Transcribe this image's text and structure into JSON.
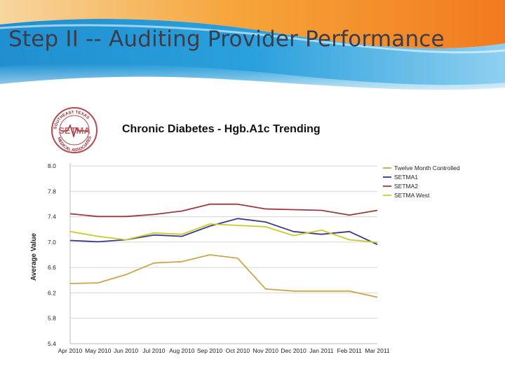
{
  "slide": {
    "title": "Step II -- Auditing Provider Performance"
  },
  "logo": {
    "text": "SETMA",
    "ring_text": "SOUTHEAST TEXAS MEDICAL ASSOCIATES"
  },
  "colors": {
    "series": [
      "#c8a74b",
      "#3a3a8c",
      "#9b3a3a",
      "#c8cc2a"
    ]
  },
  "chart_data": {
    "type": "line",
    "title": "Chronic Diabetes - Hgb.A1c Trending",
    "xlabel": "",
    "ylabel": "Average Value",
    "categories": [
      "Apr 2010",
      "May 2010",
      "Jun 2010",
      "Jul 2010",
      "Aug 2010",
      "Sep 2010",
      "Oct 2010",
      "Nov 2010",
      "Dec 2010",
      "Jan 2011",
      "Feb 2011",
      "Mar 2011"
    ],
    "y_tick_labels": [
      "8.0",
      "7.8",
      "7.4",
      "7.0",
      "6.6",
      "6.2",
      "5.8",
      "5.4"
    ],
    "ylim": [
      5.4,
      8.0
    ],
    "grid": true,
    "legend_position": "top-right",
    "series": [
      {
        "name": "Twelve Month Controlled",
        "values": [
          6.28,
          6.29,
          6.41,
          6.58,
          6.6,
          6.7,
          6.65,
          6.2,
          6.17,
          6.17,
          6.17,
          6.08
        ]
      },
      {
        "name": "SETMA1",
        "values": [
          6.91,
          6.89,
          6.92,
          6.99,
          6.97,
          7.12,
          7.23,
          7.18,
          7.04,
          7.0,
          7.04,
          6.85
        ]
      },
      {
        "name": "SETMA2",
        "values": [
          7.3,
          7.26,
          7.26,
          7.29,
          7.34,
          7.44,
          7.44,
          7.37,
          7.36,
          7.35,
          7.28,
          7.35
        ]
      },
      {
        "name": "SETMA West",
        "values": [
          7.04,
          6.97,
          6.92,
          7.02,
          7.0,
          7.15,
          7.13,
          7.11,
          6.98,
          7.06,
          6.92,
          6.88
        ]
      }
    ]
  }
}
